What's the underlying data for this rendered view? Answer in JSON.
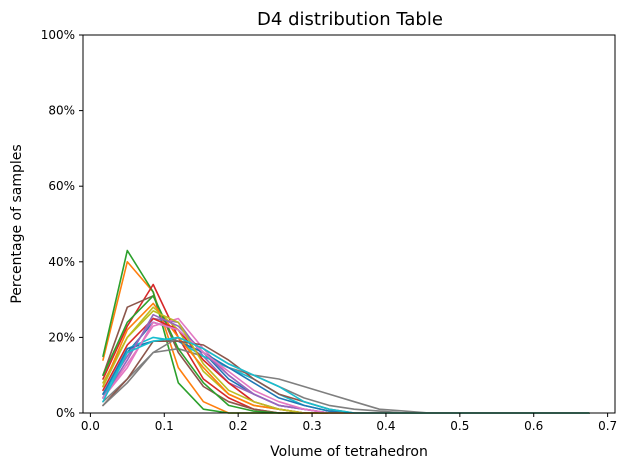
{
  "chart_data": {
    "type": "line",
    "title": "D4 distribution Table",
    "xlabel": "Volume of tetrahedron",
    "ylabel": "Percentage of samples",
    "xlim": [
      -0.01,
      0.71
    ],
    "ylim": [
      0,
      1
    ],
    "x_ticks": [
      0.0,
      0.1,
      0.2,
      0.3,
      0.4,
      0.5,
      0.6,
      0.7
    ],
    "x_tick_labels": [
      "0.0",
      "0.1",
      "0.2",
      "0.3",
      "0.4",
      "0.5",
      "0.6",
      "0.7"
    ],
    "y_ticks": [
      0,
      0.2,
      0.4,
      0.6,
      0.8,
      1.0
    ],
    "y_tick_labels": [
      "0%",
      "20%",
      "40%",
      "60%",
      "80%",
      "100%"
    ],
    "grid": false,
    "legend": "none",
    "x": [
      0.017,
      0.05,
      0.085,
      0.119,
      0.153,
      0.187,
      0.221,
      0.255,
      0.289,
      0.323,
      0.357,
      0.391,
      0.425,
      0.459,
      0.493,
      0.527,
      0.561,
      0.595,
      0.629,
      0.663,
      0.675
    ],
    "series": [
      {
        "color": "#1f77b4",
        "values": [
          0.05,
          0.16,
          0.24,
          0.22,
          0.16,
          0.09,
          0.05,
          0.02,
          0.01,
          0,
          0,
          0,
          0,
          0,
          0,
          0,
          0,
          0,
          0,
          0,
          0
        ]
      },
      {
        "color": "#ff7f0e",
        "values": [
          0.14,
          0.4,
          0.32,
          0.12,
          0.03,
          0,
          0,
          0,
          0,
          0,
          0,
          0,
          0,
          0,
          0,
          0,
          0,
          0,
          0,
          0,
          0
        ]
      },
      {
        "color": "#2ca02c",
        "values": [
          0.15,
          0.43,
          0.32,
          0.08,
          0.01,
          0,
          0,
          0,
          0,
          0,
          0,
          0,
          0,
          0,
          0,
          0,
          0,
          0,
          0,
          0,
          0
        ]
      },
      {
        "color": "#d62728",
        "values": [
          0.09,
          0.23,
          0.34,
          0.2,
          0.09,
          0.04,
          0.01,
          0,
          0,
          0,
          0,
          0,
          0,
          0,
          0,
          0,
          0,
          0,
          0,
          0,
          0
        ]
      },
      {
        "color": "#9467bd",
        "values": [
          0.05,
          0.15,
          0.25,
          0.24,
          0.15,
          0.08,
          0.05,
          0.02,
          0.01,
          0,
          0,
          0,
          0,
          0,
          0,
          0,
          0,
          0,
          0,
          0,
          0
        ]
      },
      {
        "color": "#8c564b",
        "values": [
          0.1,
          0.28,
          0.31,
          0.16,
          0.07,
          0.03,
          0.01,
          0,
          0,
          0,
          0,
          0,
          0,
          0,
          0,
          0,
          0,
          0,
          0,
          0,
          0
        ]
      },
      {
        "color": "#e377c2",
        "values": [
          0.04,
          0.13,
          0.23,
          0.25,
          0.17,
          0.1,
          0.05,
          0.02,
          0.01,
          0,
          0,
          0,
          0,
          0,
          0,
          0,
          0,
          0,
          0,
          0,
          0
        ]
      },
      {
        "color": "#7f7f7f",
        "values": [
          0.03,
          0.09,
          0.16,
          0.17,
          0.15,
          0.12,
          0.1,
          0.09,
          0.07,
          0.05,
          0.03,
          0.01,
          0.005,
          0,
          0,
          0,
          0,
          0,
          0,
          0,
          0
        ]
      },
      {
        "color": "#bcbd22",
        "values": [
          0.08,
          0.2,
          0.28,
          0.22,
          0.11,
          0.05,
          0.02,
          0.01,
          0,
          0,
          0,
          0,
          0,
          0,
          0,
          0,
          0,
          0,
          0,
          0,
          0
        ]
      },
      {
        "color": "#17becf",
        "values": [
          0.04,
          0.17,
          0.2,
          0.19,
          0.15,
          0.12,
          0.09,
          0.05,
          0.02,
          0.005,
          0,
          0,
          0,
          0,
          0,
          0,
          0,
          0,
          0,
          0,
          0
        ]
      },
      {
        "color": "#1f77b4",
        "values": [
          0.05,
          0.17,
          0.19,
          0.19,
          0.16,
          0.12,
          0.08,
          0.04,
          0.02,
          0.005,
          0,
          0,
          0,
          0,
          0,
          0,
          0,
          0,
          0,
          0,
          0
        ]
      },
      {
        "color": "#ff7f0e",
        "values": [
          0.07,
          0.22,
          0.29,
          0.2,
          0.12,
          0.05,
          0.02,
          0.01,
          0,
          0,
          0,
          0,
          0,
          0,
          0,
          0,
          0,
          0,
          0,
          0,
          0
        ]
      },
      {
        "color": "#2ca02c",
        "values": [
          0.1,
          0.24,
          0.31,
          0.17,
          0.08,
          0.02,
          0.005,
          0,
          0,
          0,
          0,
          0,
          0,
          0,
          0,
          0,
          0,
          0,
          0,
          0,
          0
        ]
      },
      {
        "color": "#d62728",
        "values": [
          0.06,
          0.18,
          0.25,
          0.22,
          0.14,
          0.08,
          0.03,
          0.01,
          0,
          0,
          0,
          0,
          0,
          0,
          0,
          0,
          0,
          0,
          0,
          0,
          0
        ]
      },
      {
        "color": "#9467bd",
        "values": [
          0.04,
          0.14,
          0.26,
          0.23,
          0.16,
          0.1,
          0.05,
          0.02,
          0.01,
          0,
          0,
          0,
          0,
          0,
          0,
          0,
          0,
          0,
          0,
          0,
          0
        ]
      },
      {
        "color": "#8c564b",
        "values": [
          0.02,
          0.09,
          0.19,
          0.19,
          0.18,
          0.14,
          0.09,
          0.05,
          0.03,
          0.01,
          0,
          0,
          0,
          0,
          0,
          0,
          0,
          0,
          0,
          0,
          0
        ]
      },
      {
        "color": "#e377c2",
        "values": [
          0.04,
          0.12,
          0.24,
          0.22,
          0.16,
          0.11,
          0.06,
          0.03,
          0.01,
          0,
          0,
          0,
          0,
          0,
          0,
          0,
          0,
          0,
          0,
          0,
          0
        ]
      },
      {
        "color": "#7f7f7f",
        "values": [
          0.02,
          0.08,
          0.16,
          0.2,
          0.17,
          0.13,
          0.1,
          0.07,
          0.04,
          0.02,
          0.01,
          0.005,
          0,
          0,
          0,
          0,
          0,
          0,
          0,
          0,
          0
        ]
      },
      {
        "color": "#bcbd22",
        "values": [
          0.07,
          0.2,
          0.27,
          0.24,
          0.13,
          0.06,
          0.03,
          0.01,
          0,
          0,
          0,
          0,
          0,
          0,
          0,
          0,
          0,
          0,
          0,
          0,
          0
        ]
      },
      {
        "color": "#17becf",
        "values": [
          0.03,
          0.16,
          0.19,
          0.2,
          0.17,
          0.13,
          0.1,
          0.07,
          0.03,
          0.01,
          0,
          0,
          0,
          0,
          0,
          0,
          0,
          0,
          0,
          0,
          0
        ]
      }
    ]
  }
}
